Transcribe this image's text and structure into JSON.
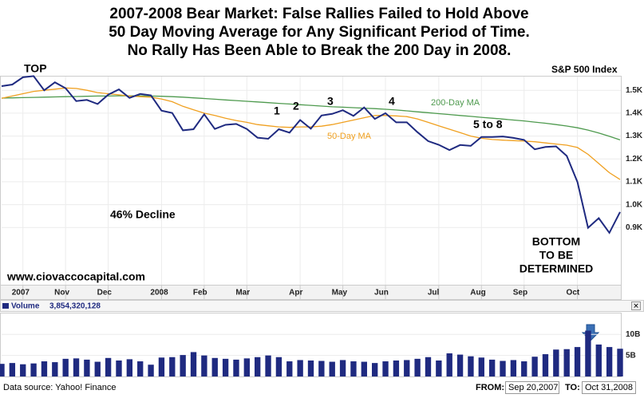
{
  "chart_data": [
    {
      "type": "line",
      "title": [
        "2007-2008 Bear Market:  False Rallies Failed to Hold Above",
        "50 Day Moving Average for Any Significant Period of Time.",
        "No Rally Has Been Able to Break the 200 Day in 2008."
      ],
      "categories": [
        null,
        null,
        "2007",
        null,
        null,
        null,
        "Nov",
        null,
        null,
        null,
        "Dec",
        null,
        null,
        null,
        null,
        "2008",
        null,
        null,
        null,
        "Feb",
        null,
        null,
        null,
        "Mar",
        null,
        null,
        null,
        null,
        "Apr",
        null,
        null,
        null,
        "May",
        null,
        null,
        null,
        "Jun",
        null,
        null,
        null,
        null,
        "Jul",
        null,
        null,
        null,
        "Aug",
        null,
        null,
        null,
        "Sep",
        null,
        null,
        null,
        null,
        "Oct",
        null,
        null,
        null,
        null
      ],
      "series": [
        {
          "name": "S&P 500 Index",
          "color": "#1f2a80",
          "values": [
            1518,
            1525,
            1557,
            1562,
            1500,
            1535,
            1509,
            1453,
            1458,
            1440,
            1481,
            1504,
            1467,
            1484,
            1478,
            1411,
            1401,
            1325,
            1330,
            1395,
            1331,
            1349,
            1353,
            1331,
            1293,
            1288,
            1330,
            1315,
            1370,
            1332,
            1390,
            1397,
            1413,
            1388,
            1425,
            1375,
            1400,
            1360,
            1360,
            1317,
            1278,
            1262,
            1239,
            1261,
            1257,
            1296,
            1296,
            1298,
            1292,
            1283,
            1242,
            1252,
            1255,
            1213,
            1099,
            899,
            941,
            877,
            968
          ]
        },
        {
          "name": "50-Day MA",
          "color": "#f0a020",
          "values": [
            1465,
            1475,
            1485,
            1495,
            1500,
            1505,
            1510,
            1508,
            1500,
            1490,
            1485,
            1480,
            1475,
            1472,
            1470,
            1462,
            1450,
            1430,
            1415,
            1400,
            1390,
            1378,
            1368,
            1360,
            1350,
            1345,
            1340,
            1338,
            1340,
            1340,
            1343,
            1350,
            1360,
            1370,
            1380,
            1390,
            1390,
            1388,
            1385,
            1375,
            1360,
            1345,
            1330,
            1315,
            1300,
            1290,
            1285,
            1282,
            1280,
            1278,
            1275,
            1270,
            1265,
            1260,
            1250,
            1220,
            1180,
            1140,
            1110
          ]
        },
        {
          "name": "200-Day MA",
          "color": "#4e9a4e",
          "values": [
            1466,
            1467,
            1468,
            1469,
            1470,
            1471,
            1472,
            1473,
            1474,
            1475,
            1475,
            1476,
            1476,
            1476,
            1475,
            1474,
            1472,
            1470,
            1467,
            1464,
            1461,
            1458,
            1455,
            1452,
            1449,
            1446,
            1443,
            1440,
            1437,
            1434,
            1431,
            1428,
            1426,
            1424,
            1422,
            1420,
            1417,
            1414,
            1410,
            1406,
            1402,
            1398,
            1394,
            1390,
            1386,
            1382,
            1378,
            1374,
            1370,
            1366,
            1361,
            1356,
            1350,
            1344,
            1336,
            1326,
            1313,
            1299,
            1283
          ]
        }
      ],
      "ylim": [
        650,
        1560
      ],
      "yticks": [
        {
          "value": 900,
          "label": "0.9K"
        },
        {
          "value": 1000,
          "label": "1.0K"
        },
        {
          "value": 1100,
          "label": "1.1K"
        },
        {
          "value": 1200,
          "label": "1.2K"
        },
        {
          "value": 1300,
          "label": "1.3K"
        },
        {
          "value": 1400,
          "label": "1.4K"
        },
        {
          "value": 1500,
          "label": "1.5K"
        }
      ],
      "grid": true,
      "annotations": [
        "TOP",
        "1",
        "2",
        "3",
        "4",
        "5 to 8",
        "46% Decline",
        "BOTTOM",
        "TO BE",
        "DETERMINED",
        "www.ciovaccocapital.com"
      ]
    },
    {
      "type": "bar",
      "series": [
        {
          "name": "Volume",
          "color": "#1f2a80",
          "values": [
            3.0,
            3.2,
            2.9,
            3.1,
            3.6,
            3.4,
            4.2,
            4.3,
            4.0,
            3.5,
            4.4,
            3.8,
            4.1,
            3.6,
            2.8,
            4.5,
            4.6,
            5.1,
            5.8,
            5.0,
            4.4,
            4.2,
            4.0,
            4.3,
            4.6,
            5.0,
            4.6,
            3.6,
            3.9,
            3.8,
            3.7,
            3.5,
            3.9,
            3.6,
            3.5,
            3.2,
            3.6,
            3.8,
            3.9,
            4.2,
            4.6,
            3.8,
            5.5,
            5.2,
            4.8,
            4.5,
            4.0,
            3.7,
            3.9,
            3.6,
            4.7,
            5.3,
            6.4,
            6.5,
            7.0,
            10.9,
            7.6,
            7.0,
            6.6
          ]
        }
      ],
      "legend_value": "3,854,320,128",
      "ylim": [
        0,
        14.8
      ],
      "yticks": [
        {
          "value": 5,
          "label": "5B"
        },
        {
          "value": 10,
          "label": "10B"
        }
      ],
      "grid": true
    }
  ],
  "footer": {
    "source": "Data source:  Yahoo! Finance",
    "from_label": "FROM:",
    "from": "Sep 20,2007",
    "to_label": "TO:",
    "to": "Oct 31,2008"
  }
}
